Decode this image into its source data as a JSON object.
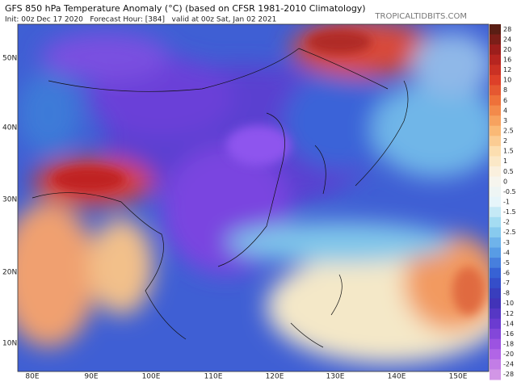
{
  "header": {
    "title": "GFS 850 hPa Temperature Anomaly (°C) (based on CFSR 1981-2010 Climatology)",
    "subtitle": "Init: 00z Dec 17 2020   Forecast Hour: [384]   valid at 00z Sat, Jan 02 2021",
    "watermark": "TROPICALTIDBITS.COM"
  },
  "map": {
    "lat_labels": [
      "50N",
      "40N",
      "30N",
      "20N",
      "10N"
    ],
    "lon_labels": [
      "80E",
      "90E",
      "100E",
      "110E",
      "120E",
      "130E",
      "140E",
      "150E"
    ]
  },
  "colorbar": {
    "labels": [
      28,
      24,
      20,
      16,
      12,
      10,
      8,
      6,
      4,
      3,
      2.5,
      2,
      1.5,
      1,
      0.5,
      0,
      -0.5,
      -1,
      -1.5,
      -2,
      -2.5,
      -3,
      -4,
      -5,
      -6,
      -7,
      -8,
      -10,
      -12,
      -14,
      -16,
      -18,
      -20,
      -24,
      -28
    ]
  }
}
